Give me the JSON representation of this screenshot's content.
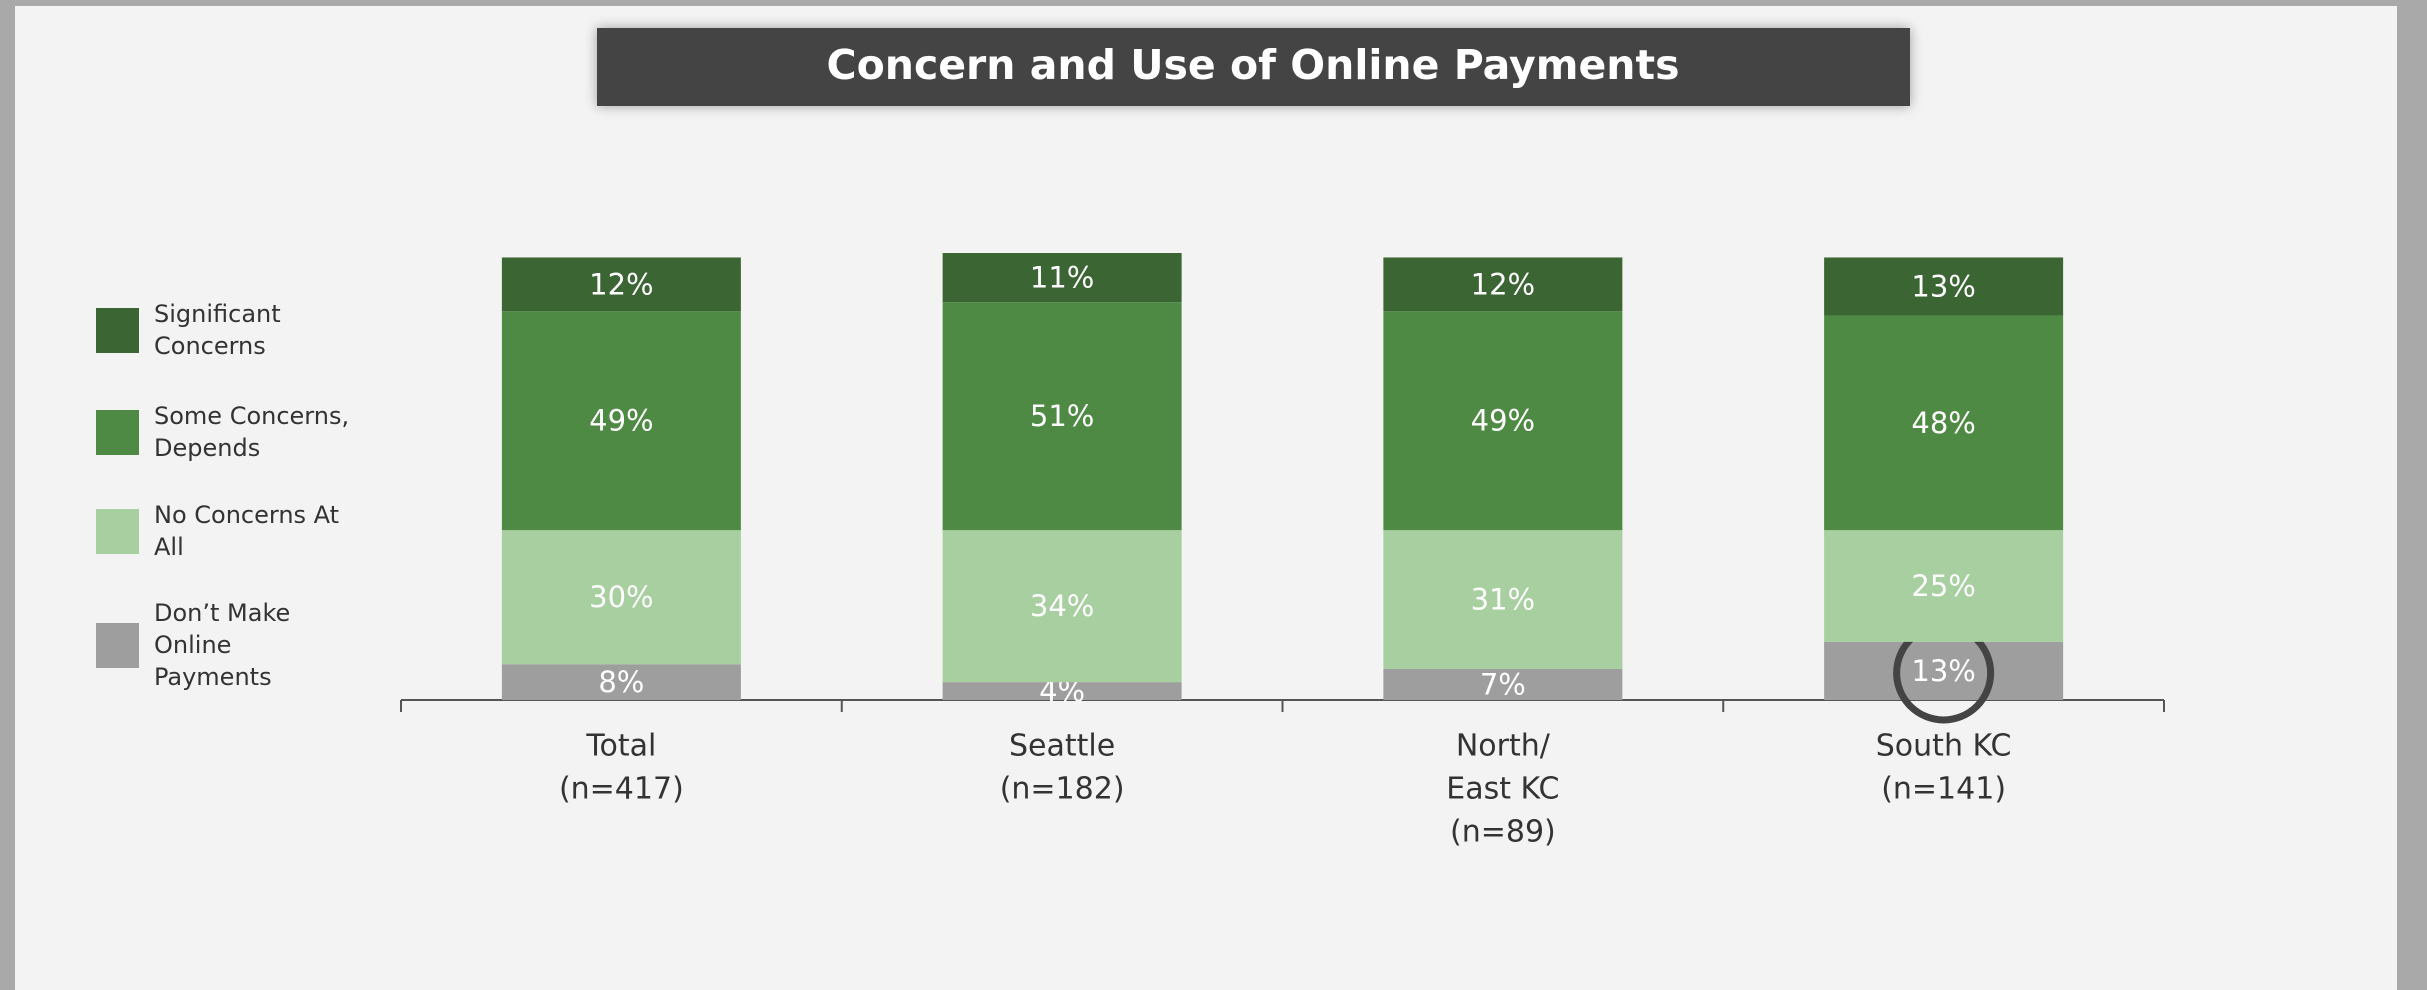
{
  "chart_data": {
    "type": "bar",
    "stacked": true,
    "title": "Concern and Use of Online Payments",
    "categories": [
      [
        "Total",
        "(n=417)"
      ],
      [
        "Seattle",
        "(n=182)"
      ],
      [
        "North/",
        "East KC",
        "(n=89)"
      ],
      [
        "South KC",
        "(n=141)"
      ]
    ],
    "ylim": [
      0,
      100
    ],
    "series": [
      {
        "name": "Significant Concerns",
        "color": "#3b6533",
        "values": [
          12,
          11,
          12,
          13
        ],
        "value_labels": [
          "12%",
          "11%",
          "12%",
          "13%"
        ]
      },
      {
        "name": "Some Concerns, Depends",
        "color": "#4e8a43",
        "values": [
          49,
          51,
          49,
          48
        ],
        "value_labels": [
          "49%",
          "51%",
          "49%",
          "48%"
        ]
      },
      {
        "name": "No Concerns At All",
        "color": "#a7cf9f",
        "values": [
          30,
          34,
          31,
          25
        ],
        "value_labels": [
          "30%",
          "34%",
          "31%",
          "25%"
        ]
      },
      {
        "name": "Don’t Make Online Payments",
        "color": "#9e9e9e",
        "values": [
          8,
          4,
          7,
          13
        ],
        "value_labels": [
          "8%",
          "4%",
          "7%",
          "13%"
        ]
      }
    ]
  }
}
